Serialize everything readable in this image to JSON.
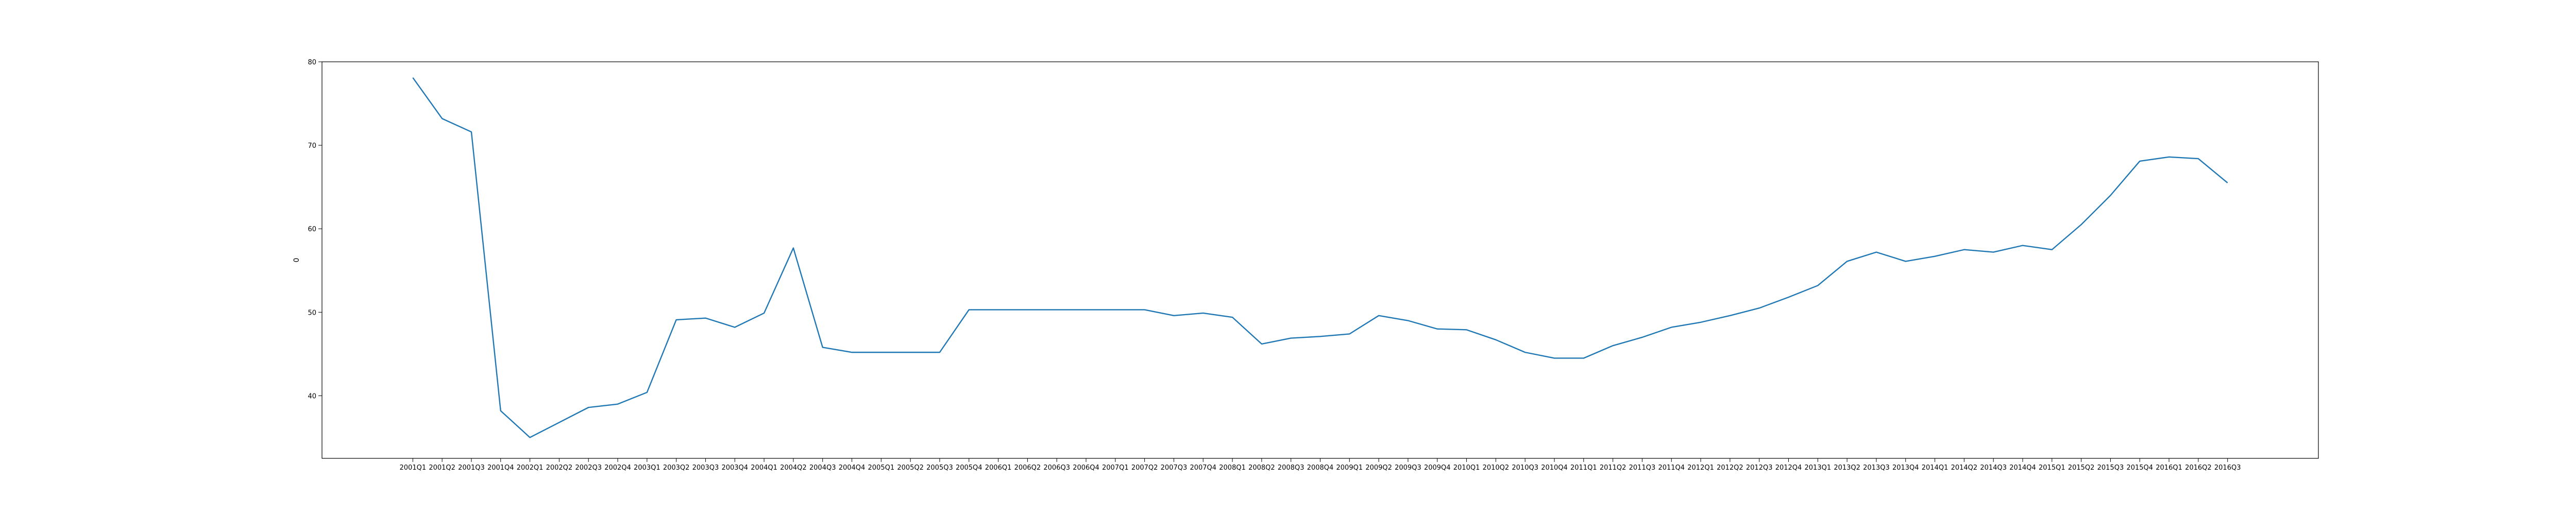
{
  "chart_data": {
    "type": "line",
    "title": "",
    "xlabel": "",
    "ylabel": "0",
    "ylim": [
      32.5,
      80
    ],
    "yticks": [
      40,
      50,
      60,
      70,
      80
    ],
    "grid": false,
    "legend": "none",
    "colors": {
      "line": "#1f77b4",
      "axes": "#000000",
      "background": "#ffffff"
    },
    "x": [
      "2001Q1",
      "2001Q2",
      "2001Q3",
      "2001Q4",
      "2002Q1",
      "2002Q2",
      "2002Q3",
      "2002Q4",
      "2003Q1",
      "2003Q2",
      "2003Q3",
      "2003Q4",
      "2004Q1",
      "2004Q2",
      "2004Q3",
      "2004Q4",
      "2005Q1",
      "2005Q2",
      "2005Q3",
      "2005Q4",
      "2006Q1",
      "2006Q2",
      "2006Q3",
      "2006Q4",
      "2007Q1",
      "2007Q2",
      "2007Q3",
      "2007Q4",
      "2008Q1",
      "2008Q2",
      "2008Q3",
      "2008Q4",
      "2009Q1",
      "2009Q2",
      "2009Q3",
      "2009Q4",
      "2010Q1",
      "2010Q2",
      "2010Q3",
      "2010Q4",
      "2011Q1",
      "2011Q2",
      "2011Q3",
      "2011Q4",
      "2012Q1",
      "2012Q2",
      "2012Q3",
      "2012Q4",
      "2013Q1",
      "2013Q2",
      "2013Q3",
      "2013Q4",
      "2014Q1",
      "2014Q2",
      "2014Q3",
      "2014Q4",
      "2015Q1",
      "2015Q2",
      "2015Q3",
      "2015Q4",
      "2016Q1",
      "2016Q2",
      "2016Q3"
    ],
    "series": [
      {
        "values": [
          78.1,
          73.2,
          71.6,
          38.2,
          35.0,
          36.8,
          38.6,
          39.0,
          40.4,
          49.1,
          49.3,
          48.2,
          49.9,
          57.7,
          45.8,
          45.2,
          45.2,
          45.2,
          45.2,
          50.3,
          50.3,
          50.3,
          50.3,
          50.3,
          50.3,
          50.3,
          49.6,
          49.9,
          49.4,
          46.2,
          46.9,
          47.1,
          47.4,
          49.6,
          49.0,
          48.0,
          47.9,
          46.7,
          45.2,
          44.5,
          44.5,
          46.0,
          47.0,
          48.2,
          48.8,
          49.6,
          50.5,
          51.8,
          53.2,
          56.1,
          57.2,
          56.1,
          56.7,
          57.5,
          57.2,
          58.0,
          57.5,
          60.5,
          64.0,
          68.1,
          68.6,
          68.4,
          65.5
        ]
      }
    ]
  }
}
